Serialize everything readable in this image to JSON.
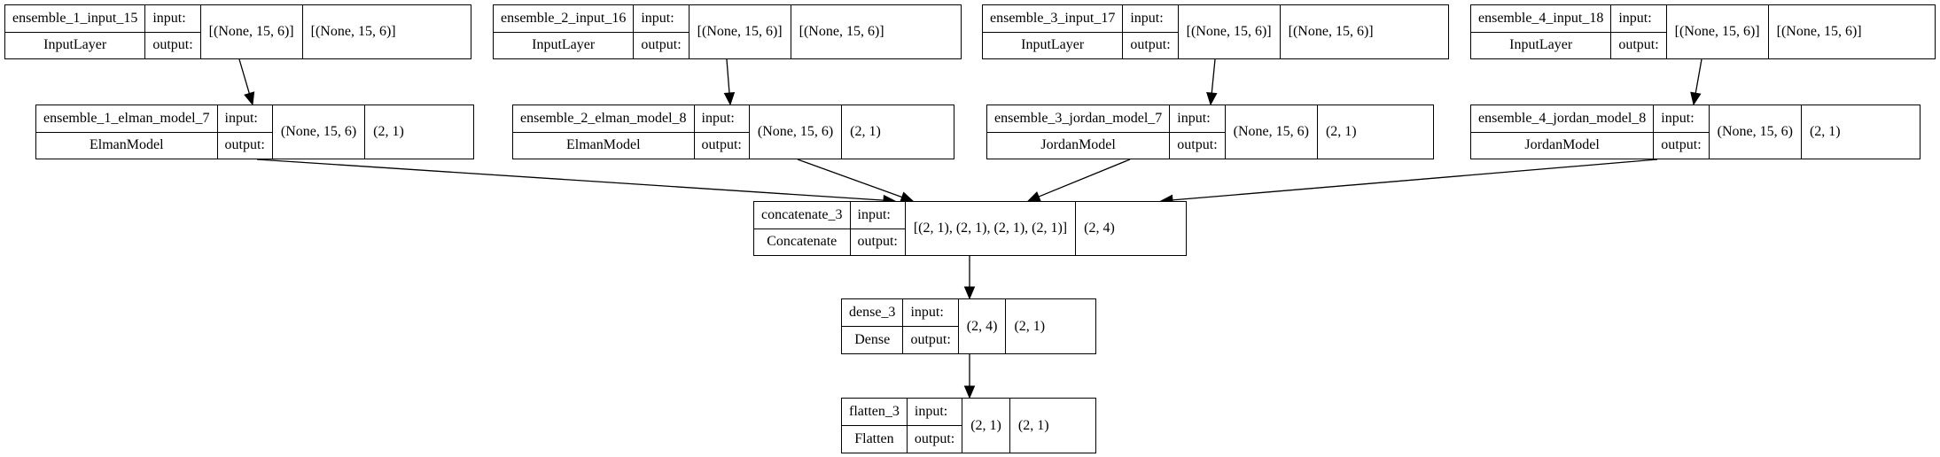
{
  "nodes": [
    {
      "id": "ensemble_1_input_15",
      "name": "ensemble_1_input_15",
      "class_name": "InputLayer",
      "input_label": "input:",
      "output_label": "output:",
      "input_shape": "[(None, 15, 6)]",
      "output_shape": "[(None, 15, 6)]"
    },
    {
      "id": "ensemble_2_input_16",
      "name": "ensemble_2_input_16",
      "class_name": "InputLayer",
      "input_label": "input:",
      "output_label": "output:",
      "input_shape": "[(None, 15, 6)]",
      "output_shape": "[(None, 15, 6)]"
    },
    {
      "id": "ensemble_3_input_17",
      "name": "ensemble_3_input_17",
      "class_name": "InputLayer",
      "input_label": "input:",
      "output_label": "output:",
      "input_shape": "[(None, 15, 6)]",
      "output_shape": "[(None, 15, 6)]"
    },
    {
      "id": "ensemble_4_input_18",
      "name": "ensemble_4_input_18",
      "class_name": "InputLayer",
      "input_label": "input:",
      "output_label": "output:",
      "input_shape": "[(None, 15, 6)]",
      "output_shape": "[(None, 15, 6)]"
    },
    {
      "id": "ensemble_1_elman_model_7",
      "name": "ensemble_1_elman_model_7",
      "class_name": "ElmanModel",
      "input_label": "input:",
      "output_label": "output:",
      "input_shape": "(None, 15, 6)",
      "output_shape": "(2, 1)"
    },
    {
      "id": "ensemble_2_elman_model_8",
      "name": "ensemble_2_elman_model_8",
      "class_name": "ElmanModel",
      "input_label": "input:",
      "output_label": "output:",
      "input_shape": "(None, 15, 6)",
      "output_shape": "(2, 1)"
    },
    {
      "id": "ensemble_3_jordan_model_7",
      "name": "ensemble_3_jordan_model_7",
      "class_name": "JordanModel",
      "input_label": "input:",
      "output_label": "output:",
      "input_shape": "(None, 15, 6)",
      "output_shape": "(2, 1)"
    },
    {
      "id": "ensemble_4_jordan_model_8",
      "name": "ensemble_4_jordan_model_8",
      "class_name": "JordanModel",
      "input_label": "input:",
      "output_label": "output:",
      "input_shape": "(None, 15, 6)",
      "output_shape": "(2, 1)"
    },
    {
      "id": "concatenate_3",
      "name": "concatenate_3",
      "class_name": "Concatenate",
      "input_label": "input:",
      "output_label": "output:",
      "input_shape": "[(2, 1), (2, 1), (2, 1), (2, 1)]",
      "output_shape": "(2, 4)"
    },
    {
      "id": "dense_3",
      "name": "dense_3",
      "class_name": "Dense",
      "input_label": "input:",
      "output_label": "output:",
      "input_shape": "(2, 4)",
      "output_shape": "(2, 1)"
    },
    {
      "id": "flatten_3",
      "name": "flatten_3",
      "class_name": "Flatten",
      "input_label": "input:",
      "output_label": "output:",
      "input_shape": "(2, 1)",
      "output_shape": "(2, 1)"
    }
  ],
  "edges": [
    {
      "from": "ensemble_1_input_15",
      "to": "ensemble_1_elman_model_7"
    },
    {
      "from": "ensemble_2_input_16",
      "to": "ensemble_2_elman_model_8"
    },
    {
      "from": "ensemble_3_input_17",
      "to": "ensemble_3_jordan_model_7"
    },
    {
      "from": "ensemble_4_input_18",
      "to": "ensemble_4_jordan_model_8"
    },
    {
      "from": "ensemble_1_elman_model_7",
      "to": "concatenate_3"
    },
    {
      "from": "ensemble_2_elman_model_8",
      "to": "concatenate_3"
    },
    {
      "from": "ensemble_3_jordan_model_7",
      "to": "concatenate_3"
    },
    {
      "from": "ensemble_4_jordan_model_8",
      "to": "concatenate_3"
    },
    {
      "from": "concatenate_3",
      "to": "dense_3"
    },
    {
      "from": "dense_3",
      "to": "flatten_3"
    }
  ]
}
